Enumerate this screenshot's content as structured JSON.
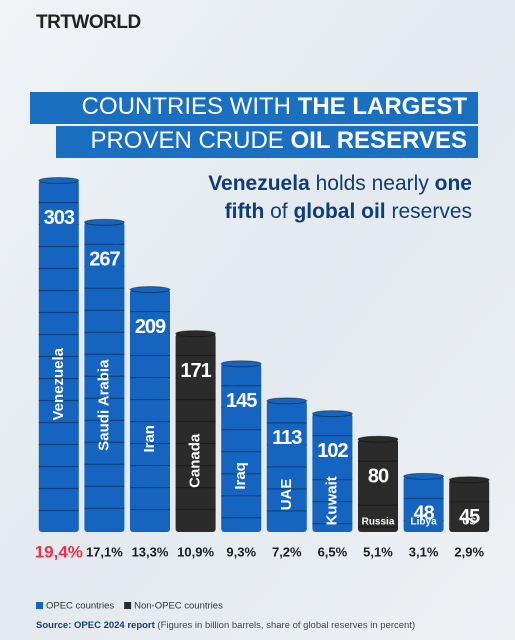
{
  "brand": "TRTWORLD",
  "chart_data": {
    "type": "barrel-bar",
    "title_lines": [
      [
        {
          "text": "COUNTRIES WITH ",
          "bold": false
        },
        {
          "text": "THE LARGEST",
          "bold": true
        }
      ],
      [
        {
          "text": "PROVEN CRUDE ",
          "bold": false
        },
        {
          "text": "OIL RESERVES",
          "bold": true
        }
      ]
    ],
    "subtitle_lines": [
      [
        {
          "text": "Venezuela",
          "bold": true
        },
        {
          "text": " holds nearly ",
          "bold": false
        },
        {
          "text": "one",
          "bold": true
        }
      ],
      [
        {
          "text": "fifth",
          "bold": true
        },
        {
          "text": " of ",
          "bold": false
        },
        {
          "text": "global oil",
          "bold": true
        },
        {
          "text": " reserves",
          "bold": false
        }
      ]
    ],
    "categories": [
      "Venezuela",
      "Saudi Arabia",
      "Iran",
      "Canada",
      "Iraq",
      "UAE",
      "Kuwait",
      "Russia",
      "Libya",
      "US"
    ],
    "series": [
      {
        "name": "OPEC countries",
        "color": "#1565c0",
        "values": [
          303,
          267,
          209,
          null,
          145,
          113,
          102,
          null,
          48,
          null
        ]
      },
      {
        "name": "Non-OPEC countries",
        "color": "#2b2b2b",
        "values": [
          null,
          null,
          null,
          171,
          null,
          null,
          null,
          80,
          null,
          45
        ]
      }
    ],
    "shares": [
      19.4,
      17.1,
      13.3,
      10.9,
      9.3,
      7.2,
      6.5,
      5.1,
      3.1,
      2.9
    ],
    "share_labels": [
      "19,4%",
      "17,1%",
      "13,3%",
      "10,9%",
      "9,3%",
      "7,2%",
      "6,5%",
      "5,1%",
      "3,1%",
      "2,9%"
    ],
    "source": [
      "Source: OPEC 2024 report",
      " (Figures in billion barrels, share of global reserves in percent)"
    ]
  }
}
